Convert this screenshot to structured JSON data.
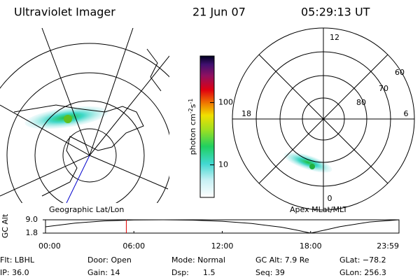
{
  "header": {
    "instrument": "Ultraviolet Imager",
    "date": "21 Jun 07",
    "time": "05:29:13 UT"
  },
  "colorbar": {
    "label_base": "photon cm",
    "label_exp1": "-2",
    "label_mid": "s",
    "label_exp2": "-1",
    "log": true,
    "lim": [
      3,
      560
    ],
    "ticks": [
      10,
      100
    ]
  },
  "left_panel": {
    "caption": "Geographic Lat/Lon"
  },
  "right_panel": {
    "caption": "Apex MLat/MLT",
    "mlt_labels": [
      "12",
      "18",
      "6",
      "0"
    ],
    "lat_labels": [
      "60",
      "70",
      "80"
    ]
  },
  "orbit": {
    "ylabel": "GC Alt",
    "yticks": [
      {
        "value": 9.0,
        "label": "9.0"
      },
      {
        "value": 1.8,
        "label": "1.8"
      }
    ],
    "xlim": [
      0,
      24
    ],
    "xticks": [
      {
        "value": 0,
        "label": "00:00"
      },
      {
        "value": 6,
        "label": "06:00"
      },
      {
        "value": 12,
        "label": "12:00"
      },
      {
        "value": 18,
        "label": "18:00"
      },
      {
        "value": 24,
        "label": "23:59"
      }
    ],
    "hours": [
      0,
      2,
      4,
      6,
      8,
      10,
      12,
      14,
      16,
      17,
      18,
      19,
      20,
      22,
      24
    ],
    "altitude": [
      5.2,
      7.2,
      8.4,
      8.9,
      9.0,
      8.8,
      8.2,
      7.0,
      5.0,
      3.5,
      1.8,
      3.5,
      5.3,
      7.8,
      9.0
    ]
  },
  "status": [
    [
      "Flt: LBHL",
      "IP: 36.0"
    ],
    [
      "Door: Open",
      "Gain: 14"
    ],
    [
      "Mode: Normal",
      "Dsp:"
    ],
    [
      "GC Alt: 7.9 Re",
      "Seq: 39"
    ],
    [
      "GLat: −78.2",
      "GLon: 256.3"
    ]
  ],
  "dsp_value": "1.5"
}
